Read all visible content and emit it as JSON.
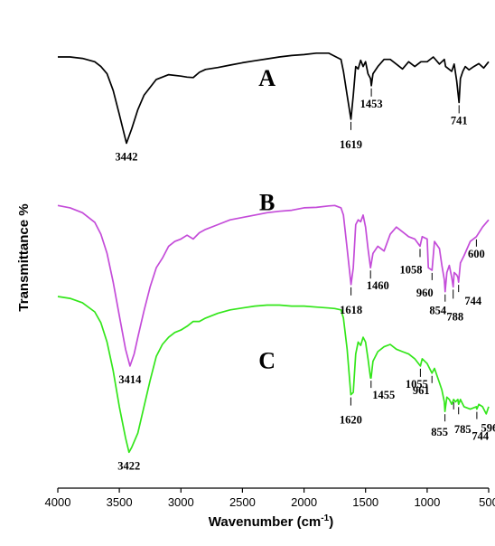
{
  "chart_data": {
    "type": "line",
    "title": "",
    "xlabel": "Wavenumber (cm",
    "xlabel_sup": "-1",
    "xlabel_end": ")",
    "ylabel": "Transmittance %",
    "xlim": [
      4000,
      500
    ],
    "x_reversed": true,
    "x_ticks": [
      "4000",
      "3500",
      "3000",
      "2500",
      "2000",
      "1500",
      "1000",
      "500"
    ],
    "y_tick_labels": false,
    "grid": false,
    "legend": "none",
    "series": [
      {
        "name": "A",
        "color": "#000000",
        "x": [
          4000,
          3900,
          3800,
          3700,
          3650,
          3600,
          3550,
          3500,
          3442,
          3400,
          3350,
          3300,
          3200,
          3100,
          3000,
          2950,
          2900,
          2850,
          2800,
          2700,
          2600,
          2500,
          2400,
          2300,
          2200,
          2100,
          2000,
          1900,
          1800,
          1700,
          1680,
          1650,
          1619,
          1600,
          1580,
          1560,
          1540,
          1520,
          1500,
          1480,
          1460,
          1453,
          1440,
          1400,
          1350,
          1300,
          1250,
          1200,
          1150,
          1100,
          1050,
          1000,
          950,
          900,
          860,
          850,
          800,
          780,
          760,
          741,
          730,
          710,
          690,
          660,
          620,
          580,
          540,
          500
        ],
        "y": [
          90,
          90,
          89.7,
          89,
          88,
          86.5,
          83,
          78,
          72,
          75,
          79,
          82,
          85.3,
          86.3,
          86,
          85.8,
          85.7,
          86.8,
          87.4,
          87.8,
          88.3,
          88.8,
          89.2,
          89.6,
          90,
          90.3,
          90.5,
          90.8,
          90.8,
          89.5,
          87,
          82,
          77,
          82,
          88,
          87.5,
          89.3,
          88,
          89,
          86.5,
          85.5,
          84,
          86.5,
          88,
          89.5,
          89.5,
          88.5,
          87.5,
          89,
          88,
          89,
          89,
          90,
          88.5,
          89.5,
          88,
          87,
          88.5,
          85,
          80.5,
          85.5,
          87,
          88,
          87.3,
          88,
          88.6,
          87.7,
          89
        ]
      },
      {
        "name": "B",
        "color": "#C44CD9",
        "x": [
          4000,
          3900,
          3800,
          3700,
          3650,
          3600,
          3550,
          3500,
          3450,
          3414,
          3380,
          3350,
          3300,
          3250,
          3200,
          3150,
          3100,
          3050,
          3000,
          2950,
          2900,
          2850,
          2800,
          2700,
          2600,
          2500,
          2400,
          2300,
          2200,
          2100,
          2000,
          1900,
          1800,
          1750,
          1700,
          1680,
          1650,
          1618,
          1600,
          1580,
          1560,
          1540,
          1520,
          1500,
          1480,
          1460,
          1440,
          1400,
          1350,
          1300,
          1250,
          1200,
          1150,
          1100,
          1058,
          1040,
          1000,
          990,
          960,
          940,
          900,
          880,
          860,
          854,
          840,
          820,
          800,
          788,
          780,
          760,
          750,
          744,
          730,
          700,
          650,
          600,
          550,
          500
        ],
        "y": [
          59,
          58.5,
          57.5,
          55.5,
          53,
          49,
          43,
          36,
          29,
          25.5,
          28,
          31.5,
          37,
          42,
          46,
          48,
          50.5,
          51.5,
          52,
          52.8,
          52,
          53.3,
          54,
          55,
          56,
          56.5,
          57,
          57.5,
          57.8,
          58,
          58.5,
          58.6,
          58.9,
          59,
          58.5,
          57,
          50,
          42.5,
          46,
          55,
          56,
          55.6,
          57,
          54.5,
          50,
          46,
          49,
          50.5,
          49.5,
          53,
          54.5,
          53.5,
          52.5,
          52,
          50.5,
          52.5,
          52,
          46,
          45.5,
          51.5,
          50,
          46.5,
          43.5,
          41,
          45,
          46.5,
          44,
          42,
          45,
          44.5,
          44,
          43,
          47,
          48.5,
          51.5,
          52.5,
          54.5,
          56
        ]
      },
      {
        "name": "C",
        "color": "#33E61A",
        "x": [
          4000,
          3900,
          3800,
          3700,
          3650,
          3600,
          3550,
          3500,
          3450,
          3422,
          3400,
          3350,
          3300,
          3250,
          3200,
          3150,
          3100,
          3050,
          3000,
          2950,
          2900,
          2850,
          2800,
          2700,
          2600,
          2500,
          2400,
          2300,
          2200,
          2100,
          2000,
          1900,
          1800,
          1750,
          1700,
          1680,
          1650,
          1620,
          1600,
          1580,
          1560,
          1540,
          1520,
          1500,
          1480,
          1460,
          1455,
          1440,
          1400,
          1350,
          1300,
          1250,
          1200,
          1150,
          1100,
          1055,
          1040,
          1000,
          961,
          940,
          900,
          880,
          860,
          855,
          840,
          820,
          800,
          785,
          770,
          750,
          744,
          730,
          700,
          650,
          600,
          596,
          580,
          550,
          520,
          500
        ],
        "y": [
          40,
          39.6,
          38.7,
          36.8,
          34.5,
          30.5,
          24.5,
          17,
          10.5,
          7.5,
          8.5,
          11.5,
          17,
          22.5,
          27.5,
          30,
          31.5,
          32.5,
          33,
          33.8,
          34.8,
          34.8,
          35.5,
          36.5,
          37.2,
          37.6,
          38,
          38.2,
          38.2,
          38,
          38,
          37.8,
          37.6,
          37.5,
          37.2,
          35.5,
          29,
          19.5,
          20,
          28,
          30.5,
          29.8,
          31.5,
          30.5,
          27,
          23,
          23,
          26.5,
          28.5,
          29.5,
          30,
          29,
          28.5,
          28,
          27,
          25.5,
          27,
          26,
          24,
          25,
          22,
          20.5,
          18,
          16,
          19,
          18.5,
          17.5,
          18.5,
          18,
          18.5,
          17.5,
          18.5,
          17,
          16.5,
          17,
          16.5,
          17.5,
          17,
          15.5,
          17
        ]
      }
    ],
    "annotations": [
      {
        "series": "A",
        "label": "3442",
        "x": 3442
      },
      {
        "series": "A",
        "label": "1619",
        "x": 1619
      },
      {
        "series": "A",
        "label": "1453",
        "x": 1453
      },
      {
        "series": "A",
        "label": "741",
        "x": 741
      },
      {
        "series": "B",
        "label": "3414",
        "x": 3414
      },
      {
        "series": "B",
        "label": "1618",
        "x": 1618
      },
      {
        "series": "B",
        "label": "1460",
        "x": 1460
      },
      {
        "series": "B",
        "label": "1058",
        "x": 1058
      },
      {
        "series": "B",
        "label": "960",
        "x": 960
      },
      {
        "series": "B",
        "label": "854",
        "x": 854
      },
      {
        "series": "B",
        "label": "788",
        "x": 788
      },
      {
        "series": "B",
        "label": "744",
        "x": 744
      },
      {
        "series": "B",
        "label": "600",
        "x": 600
      },
      {
        "series": "C",
        "label": "3422",
        "x": 3422
      },
      {
        "series": "C",
        "label": "1620",
        "x": 1620
      },
      {
        "series": "C",
        "label": "1455",
        "x": 1455
      },
      {
        "series": "C",
        "label": "1055",
        "x": 1055
      },
      {
        "series": "C",
        "label": "961",
        "x": 961
      },
      {
        "series": "C",
        "label": "855",
        "x": 855
      },
      {
        "series": "C",
        "label": "785",
        "x": 785
      },
      {
        "series": "C",
        "label": "744",
        "x": 744
      },
      {
        "series": "C",
        "label": "596",
        "x": 596
      }
    ]
  }
}
